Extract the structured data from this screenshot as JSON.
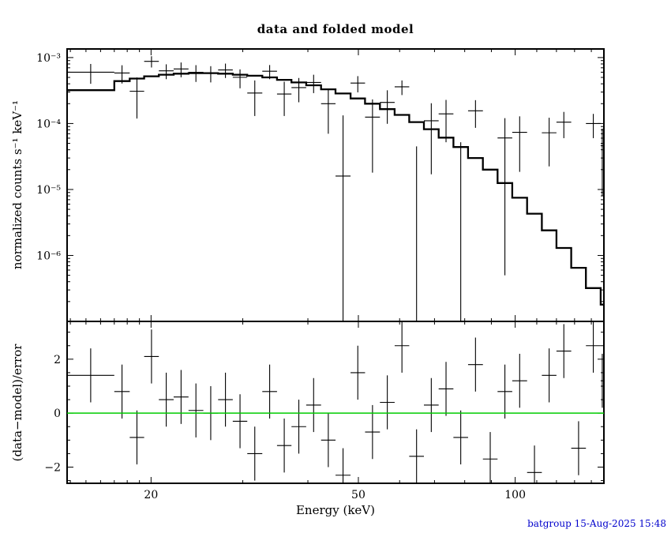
{
  "stamp": {
    "text": "batgroup 15-Aug-2025 15:48",
    "color": "#0000cc"
  },
  "chart_data": [
    {
      "type": "scatter",
      "panel": "spectrum",
      "title": "data and folded model",
      "ylabel": "normalized counts s⁻¹ keV⁻¹",
      "xscale": "log",
      "yscale": "log",
      "xlim": [
        13.8,
        148
      ],
      "ylim": [
        1e-07,
        0.00135
      ],
      "grid": false,
      "x_ticks": {
        "values": [
          20,
          50,
          100
        ],
        "labels": [
          "20",
          "50",
          "100"
        ]
      },
      "y_ticks": {
        "values": [
          0.001,
          0.0001,
          1e-05,
          1e-06
        ],
        "labels": [
          "10⁻³",
          "10⁻⁴",
          "10⁻⁵",
          "10⁻⁶"
        ]
      },
      "bin_edges_kev": [
        13.8,
        17.0,
        18.2,
        19.4,
        20.7,
        22.1,
        23.6,
        25.2,
        26.9,
        28.7,
        30.6,
        32.7,
        34.9,
        37.2,
        39.7,
        42.4,
        45.2,
        48.3,
        51.5,
        55.0,
        58.7,
        62.6,
        66.8,
        71.3,
        76.1,
        81.2,
        86.7,
        92.5,
        98.7,
        105.4,
        112.5,
        120.0,
        128.1,
        136.7,
        145.9,
        148.0
      ],
      "series": [
        {
          "name": "data",
          "marker": "cross-errorbar",
          "color": "#000000",
          "y": [
            0.0006,
            0.000584,
            0.000309,
            0.000877,
            0.00063,
            0.000672,
            0.000597,
            0.00058,
            0.00065,
            0.000502,
            0.00029,
            0.00062,
            0.00028,
            0.00035,
            0.000419,
            0.0002,
            1.6e-05,
            0.00041,
            0.000125,
            0.000209,
            0.00036,
            -5.5e-05,
            0.00011,
            0.00014,
            -2.8e-05,
            0.000156,
            -9e-05,
            6.05e-05,
            7.35e-05,
            -0.000106,
            7.24e-05,
            0.000105,
            -5.4e-05,
            0.0001,
            4.6e-05
          ],
          "yerr": [
            0.0002,
            0.00018,
            0.00019,
            0.00017,
            0.00016,
            0.00017,
            0.00017,
            0.00016,
            0.00016,
            0.00016,
            0.00016,
            0.00015,
            0.00015,
            0.00014,
            0.00013,
            0.00013,
            0.000117,
            0.000113,
            0.000107,
            0.00011,
            9e-05,
            0.0001,
            9.3e-05,
            8.8e-05,
            8e-05,
            7e-05,
            6.5e-05,
            6e-05,
            5.5e-05,
            5e-05,
            5e-05,
            4.5e-05,
            4.2e-05,
            4e-05,
            3.8e-05
          ]
        },
        {
          "name": "folded model",
          "style": "step",
          "color": "#000000",
          "y": [
            0.00032,
            0.00044,
            0.00048,
            0.00052,
            0.00055,
            0.00057,
            0.00058,
            0.00058,
            0.00057,
            0.00055,
            0.00053,
            0.0005,
            0.00046,
            0.00042,
            0.00038,
            0.00033,
            0.000285,
            0.00024,
            0.0002,
            0.000165,
            0.000135,
            0.000105,
            8.2e-05,
            6.1e-05,
            4.4e-05,
            3e-05,
            2e-05,
            1.25e-05,
            7.5e-06,
            4.3e-06,
            2.4e-06,
            1.3e-06,
            6.5e-07,
            3.2e-07,
            1.8e-07
          ]
        }
      ]
    },
    {
      "type": "scatter",
      "panel": "residuals",
      "xlabel": "Energy (keV)",
      "ylabel": "(data−model)/error",
      "xscale": "log",
      "yscale": "linear",
      "xlim": [
        13.8,
        148
      ],
      "ylim": [
        -2.6,
        3.4
      ],
      "grid": false,
      "x_ticks": {
        "values": [
          20,
          50,
          100
        ],
        "labels": [
          "20",
          "50",
          "100"
        ]
      },
      "y_ticks": {
        "values": [
          -2,
          0,
          2
        ],
        "labels": [
          "−2",
          "0",
          "2"
        ]
      },
      "bin_edges_kev": [
        13.8,
        17.0,
        18.2,
        19.4,
        20.7,
        22.1,
        23.6,
        25.2,
        26.9,
        28.7,
        30.6,
        32.7,
        34.9,
        37.2,
        39.7,
        42.4,
        45.2,
        48.3,
        51.5,
        55.0,
        58.7,
        62.6,
        66.8,
        71.3,
        76.1,
        81.2,
        86.7,
        92.5,
        98.7,
        105.4,
        112.5,
        120.0,
        128.1,
        136.7,
        145.9,
        148.0
      ],
      "series": [
        {
          "name": "residuals",
          "marker": "cross-errorbar",
          "color": "#000000",
          "y": [
            1.4,
            0.8,
            -0.9,
            2.1,
            0.5,
            0.6,
            0.1,
            0.0,
            0.5,
            -0.3,
            -1.5,
            0.8,
            -1.2,
            -0.5,
            0.3,
            -1.0,
            -2.3,
            1.5,
            -0.7,
            0.4,
            2.5,
            -1.6,
            0.3,
            0.9,
            -0.9,
            1.8,
            -1.7,
            0.8,
            1.2,
            -2.2,
            1.4,
            2.3,
            -1.3,
            2.5,
            1.2
          ],
          "yerr": 1
        },
        {
          "name": "zero line",
          "style": "hline",
          "y0": 0,
          "color": "#00cc00"
        }
      ]
    }
  ]
}
